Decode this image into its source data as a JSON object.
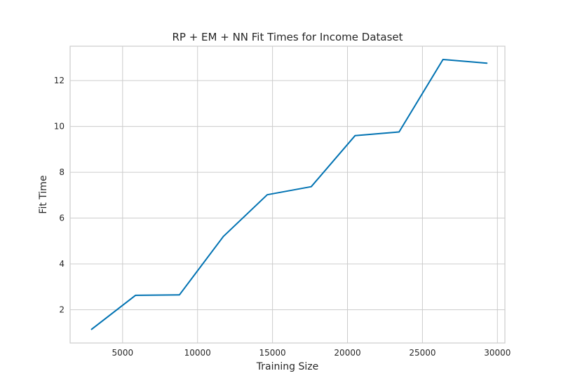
{
  "chart_data": {
    "type": "line",
    "title": "RP + EM + NN Fit Times for Income Dataset",
    "xlabel": "Training Size",
    "ylabel": "Fit Time",
    "xlim": [
      1500,
      30500
    ],
    "ylim": [
      0.55,
      13.5
    ],
    "xticks": [
      5000,
      10000,
      15000,
      20000,
      25000,
      30000
    ],
    "yticks": [
      2,
      4,
      6,
      8,
      10,
      12
    ],
    "grid": true,
    "series": [
      {
        "color": "#0072b2",
        "x": [
          2930,
          5860,
          8790,
          11720,
          14650,
          17580,
          20510,
          23440,
          26370,
          29300
        ],
        "y": [
          1.15,
          2.63,
          2.65,
          5.2,
          7.02,
          7.37,
          9.6,
          9.76,
          12.92,
          12.76
        ]
      }
    ]
  }
}
